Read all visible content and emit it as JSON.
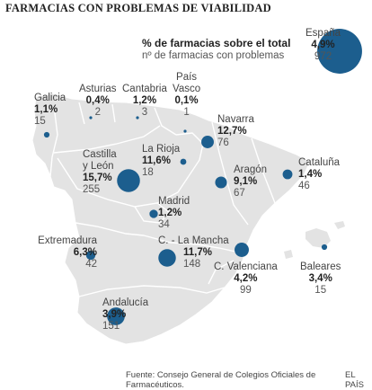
{
  "title": "FARMACIAS CON PROBLEMAS DE VIABILIDAD",
  "legend": {
    "title": "% de farmacias sobre el total",
    "subtitle": "nº de farmacias con problemas"
  },
  "colors": {
    "land": "#e3e3e3",
    "border": "#ffffff",
    "bubble": "#1c5e8e"
  },
  "regions": [
    {
      "key": "espana",
      "name": "España",
      "pct": "4,9%",
      "count": "972",
      "value": 972
    },
    {
      "key": "galicia",
      "name": "Galicia",
      "pct": "1,1%",
      "count": "15",
      "value": 15
    },
    {
      "key": "asturias",
      "name": "Asturias",
      "pct": "0,4%",
      "count": "2",
      "value": 2
    },
    {
      "key": "cantabria",
      "name": "Cantabria",
      "pct": "1,2%",
      "count": "3",
      "value": 3
    },
    {
      "key": "pais-vasco",
      "name": "País Vasco",
      "name1": "País",
      "name2": "Vasco",
      "pct": "0,1%",
      "count": "1",
      "value": 1
    },
    {
      "key": "navarra",
      "name": "Navarra",
      "pct": "12,7%",
      "count": "76",
      "value": 76
    },
    {
      "key": "la-rioja",
      "name": "La Rioja",
      "pct": "11,6%",
      "count": "18",
      "value": 18
    },
    {
      "key": "castilla-leon",
      "name": "Castilla y León",
      "name1": "Castilla",
      "name2": "y León",
      "pct": "15,7%",
      "count": "255",
      "value": 255
    },
    {
      "key": "aragon",
      "name": "Aragón",
      "pct": "9,1%",
      "count": "67",
      "value": 67
    },
    {
      "key": "cataluna",
      "name": "Cataluña",
      "pct": "1,4%",
      "count": "46",
      "value": 46
    },
    {
      "key": "madrid",
      "name": "Madrid",
      "pct": "1,2%",
      "count": "34",
      "value": 34
    },
    {
      "key": "extremadura",
      "name": "Extremadura",
      "pct": "6,3%",
      "count": "42",
      "value": 42
    },
    {
      "key": "castilla-la-mancha",
      "name": "C. - La Mancha",
      "pct": "11,7%",
      "count": "148",
      "value": 148
    },
    {
      "key": "c-valenciana",
      "name": "C. Valenciana",
      "pct": "4,2%",
      "count": "99",
      "value": 99
    },
    {
      "key": "baleares",
      "name": "Baleares",
      "pct": "3,4%",
      "count": "15",
      "value": 15
    },
    {
      "key": "andalucia",
      "name": "Andalucía",
      "pct": "3,9%",
      "count": "151",
      "value": 151
    }
  ],
  "source": "Fuente: Consejo General de Colegios Oficiales de Farmacéuticos.",
  "brand": "EL PAÍS"
}
